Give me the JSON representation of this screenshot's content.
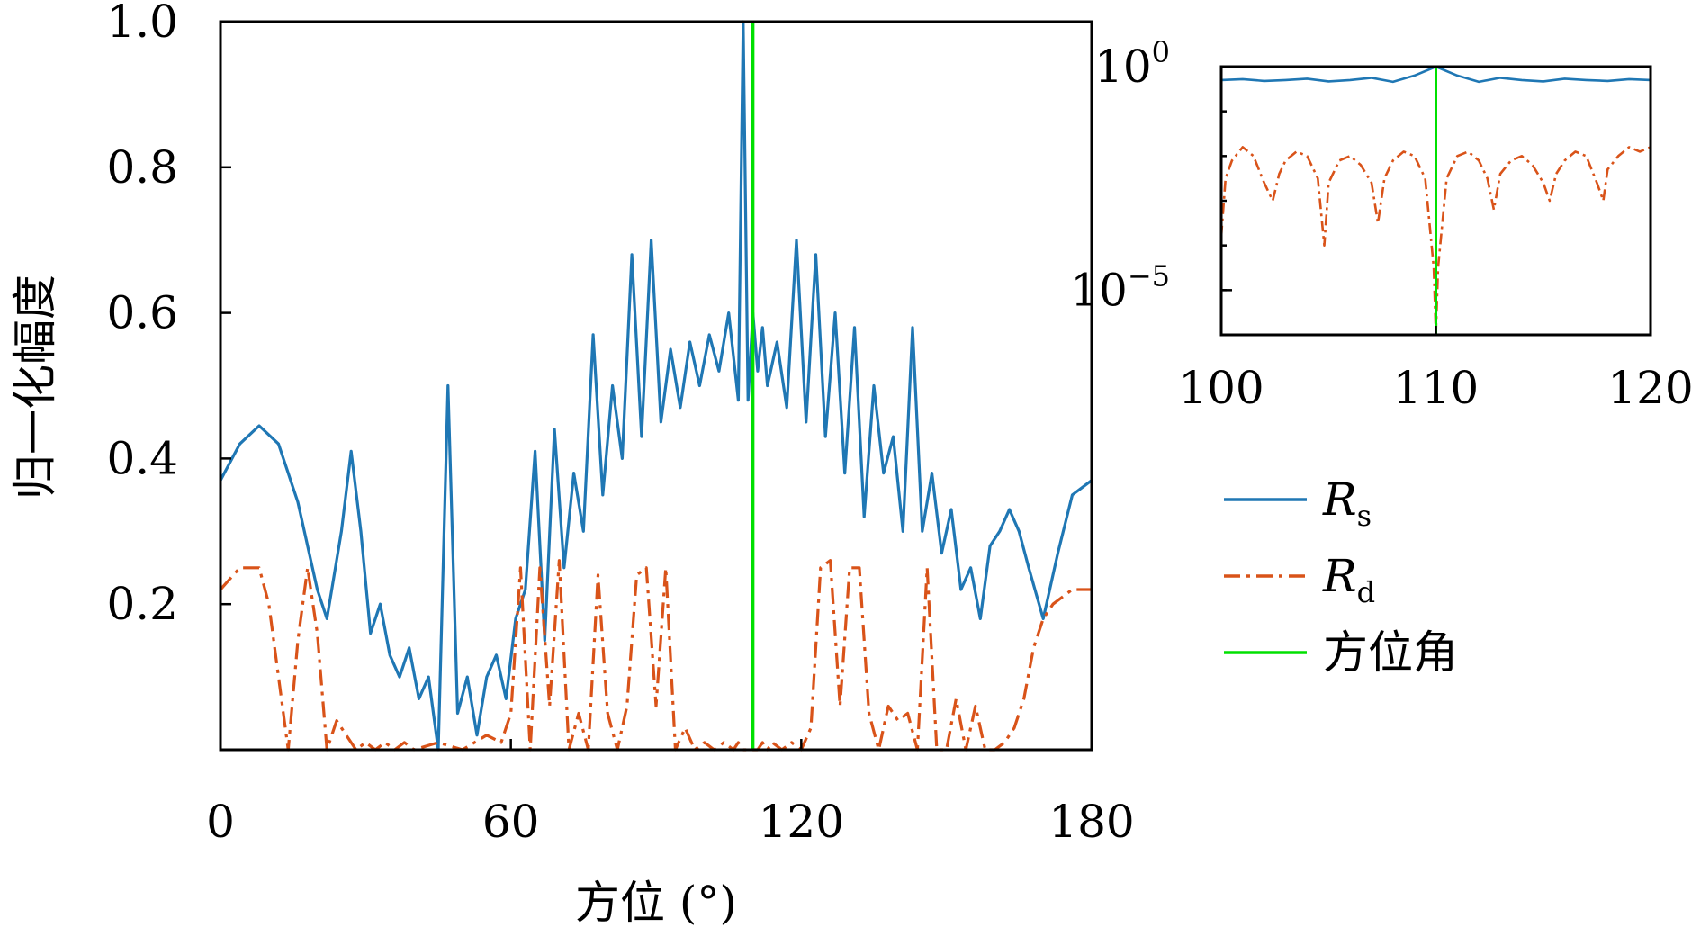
{
  "chart_data": [
    {
      "type": "line",
      "title": "",
      "xlabel": "方位 (°)",
      "ylabel": "归一化幅度",
      "xlim": [
        0,
        180
      ],
      "ylim": [
        0,
        1.0
      ],
      "xticks": [
        "0",
        "60",
        "120",
        "180"
      ],
      "yticks": [
        "0.2",
        "0.4",
        "0.6",
        "0.8",
        "1.0"
      ],
      "grid": false,
      "series": [
        {
          "name": "R_s",
          "color": "#1f77b4",
          "style": "solid",
          "x": [
            0,
            4,
            8,
            12,
            16,
            20,
            22,
            25,
            27,
            29,
            31,
            33,
            35,
            37,
            39,
            41,
            43,
            45,
            47,
            49,
            51,
            53,
            55,
            57,
            59,
            61,
            63,
            65,
            67,
            69,
            71,
            73,
            75,
            77,
            79,
            81,
            83,
            85,
            87,
            89,
            91,
            93,
            95,
            97,
            99,
            101,
            103,
            105,
            107,
            108,
            109,
            110,
            111,
            112,
            113,
            115,
            117,
            119,
            121,
            123,
            125,
            127,
            129,
            131,
            133,
            135,
            137,
            139,
            141,
            143,
            145,
            147,
            149,
            151,
            153,
            155,
            157,
            159,
            161,
            163,
            165,
            167,
            170,
            173,
            176,
            180
          ],
          "y": [
            0.37,
            0.42,
            0.445,
            0.42,
            0.34,
            0.22,
            0.18,
            0.3,
            0.41,
            0.3,
            0.16,
            0.2,
            0.13,
            0.1,
            0.14,
            0.07,
            0.1,
            0.0,
            0.5,
            0.05,
            0.1,
            0.02,
            0.1,
            0.13,
            0.07,
            0.18,
            0.22,
            0.41,
            0.15,
            0.44,
            0.25,
            0.38,
            0.3,
            0.57,
            0.35,
            0.5,
            0.4,
            0.68,
            0.43,
            0.7,
            0.45,
            0.55,
            0.47,
            0.56,
            0.5,
            0.57,
            0.52,
            0.6,
            0.48,
            1.0,
            0.48,
            0.6,
            0.52,
            0.58,
            0.5,
            0.56,
            0.47,
            0.7,
            0.45,
            0.68,
            0.43,
            0.6,
            0.38,
            0.58,
            0.32,
            0.5,
            0.38,
            0.43,
            0.3,
            0.58,
            0.3,
            0.38,
            0.27,
            0.33,
            0.22,
            0.25,
            0.18,
            0.28,
            0.3,
            0.33,
            0.3,
            0.25,
            0.18,
            0.27,
            0.35,
            0.37
          ]
        },
        {
          "name": "R_d",
          "color": "#d95319",
          "style": "dashdot",
          "x": [
            0,
            4,
            8,
            10,
            12,
            14,
            16,
            18,
            20,
            22,
            24,
            26,
            28,
            30,
            32,
            34,
            36,
            38,
            40,
            45,
            50,
            55,
            58,
            60,
            62,
            64,
            66,
            68,
            70,
            72,
            74,
            76,
            78,
            80,
            82,
            84,
            86,
            88,
            90,
            92,
            94,
            96,
            98,
            100,
            102,
            104,
            106,
            107,
            108,
            109,
            110,
            111,
            112,
            113,
            114,
            116,
            118,
            120,
            122,
            124,
            126,
            128,
            130,
            132,
            134,
            136,
            138,
            140,
            142,
            144,
            146,
            148,
            150,
            152,
            154,
            156,
            158,
            160,
            162,
            164,
            166,
            168,
            170,
            172,
            174,
            176,
            178,
            180
          ],
          "y": [
            0.22,
            0.25,
            0.25,
            0.2,
            0.1,
            0.0,
            0.15,
            0.25,
            0.16,
            0.0,
            0.04,
            0.02,
            0.0,
            0.01,
            0.0,
            0.01,
            0.0,
            0.01,
            0.0,
            0.01,
            0.0,
            0.02,
            0.01,
            0.05,
            0.25,
            0.0,
            0.25,
            0.06,
            0.26,
            0.0,
            0.05,
            0.0,
            0.24,
            0.05,
            0.0,
            0.06,
            0.24,
            0.25,
            0.06,
            0.25,
            0.0,
            0.03,
            0.0,
            0.01,
            0.0,
            0.01,
            0.0,
            0.01,
            0.0,
            0.0,
            0.0,
            0.0,
            0.01,
            0.0,
            0.01,
            0.0,
            0.01,
            0.0,
            0.03,
            0.25,
            0.26,
            0.06,
            0.25,
            0.25,
            0.05,
            0.0,
            0.06,
            0.04,
            0.05,
            0.0,
            0.25,
            0.0,
            0.0,
            0.07,
            0.0,
            0.06,
            0.0,
            0.0,
            0.01,
            0.03,
            0.07,
            0.14,
            0.18,
            0.2,
            0.21,
            0.22,
            0.22,
            0.22
          ]
        },
        {
          "name": "方位角",
          "color": "#00e000",
          "style": "solid",
          "x": [
            110,
            110
          ],
          "y": [
            0,
            1.0
          ]
        }
      ]
    },
    {
      "type": "line",
      "title": "",
      "xlim": [
        100,
        120
      ],
      "ylim": [
        -6,
        0
      ],
      "yscale": "log",
      "xticks": [
        "100",
        "110",
        "120"
      ],
      "yticks": [
        "10^0",
        "10^-5"
      ],
      "grid": false,
      "series": [
        {
          "name": "R_s",
          "color": "#1f77b4",
          "style": "solid",
          "x": [
            100,
            101,
            102,
            103,
            104,
            105,
            106,
            107,
            108,
            109,
            110,
            111,
            112,
            113,
            114,
            115,
            116,
            117,
            118,
            119,
            120
          ],
          "y": [
            -0.3,
            -0.28,
            -0.32,
            -0.3,
            -0.27,
            -0.33,
            -0.3,
            -0.25,
            -0.34,
            -0.2,
            0.0,
            -0.2,
            -0.34,
            -0.25,
            -0.3,
            -0.33,
            -0.27,
            -0.3,
            -0.32,
            -0.28,
            -0.3
          ]
        },
        {
          "name": "R_d",
          "color": "#d95319",
          "style": "dashdot",
          "x": [
            100,
            100.2,
            100.5,
            101,
            101.5,
            102,
            102.4,
            102.7,
            103,
            103.5,
            104,
            104.5,
            104.8,
            105,
            105.5,
            106,
            106.5,
            107,
            107.3,
            107.6,
            108,
            108.5,
            109,
            109.5,
            109.9,
            110,
            110.1,
            110.5,
            111,
            111.5,
            112,
            112.4,
            112.7,
            113,
            113.5,
            114,
            114.5,
            115,
            115.3,
            115.6,
            116,
            116.5,
            117,
            117.5,
            117.8,
            118,
            118.5,
            119,
            119.5,
            120
          ],
          "y": [
            -3.8,
            -2.5,
            -2.1,
            -1.8,
            -2.0,
            -2.6,
            -3.0,
            -2.4,
            -2.1,
            -1.9,
            -2.0,
            -2.5,
            -4.0,
            -2.6,
            -2.1,
            -2.0,
            -2.2,
            -2.6,
            -3.5,
            -2.5,
            -2.1,
            -1.9,
            -2.0,
            -2.5,
            -4.5,
            -6.0,
            -4.5,
            -2.5,
            -2.0,
            -1.9,
            -2.1,
            -2.5,
            -3.2,
            -2.4,
            -2.1,
            -2.0,
            -2.2,
            -2.6,
            -3.0,
            -2.4,
            -2.1,
            -1.9,
            -2.0,
            -2.6,
            -3.0,
            -2.3,
            -2.0,
            -1.8,
            -1.9,
            -1.8
          ]
        },
        {
          "name": "方位角",
          "color": "#00e000",
          "style": "solid",
          "x": [
            110,
            110
          ],
          "y": [
            -6,
            0
          ]
        }
      ]
    }
  ],
  "legend": {
    "placement": "right",
    "items": [
      {
        "label": "R",
        "sub": "s",
        "color": "#1f77b4",
        "style": "solid"
      },
      {
        "label": "R",
        "sub": "d",
        "color": "#d95319",
        "style": "dashdot"
      },
      {
        "label": "方位角",
        "sub": "",
        "color": "#00e000",
        "style": "solid"
      }
    ]
  }
}
